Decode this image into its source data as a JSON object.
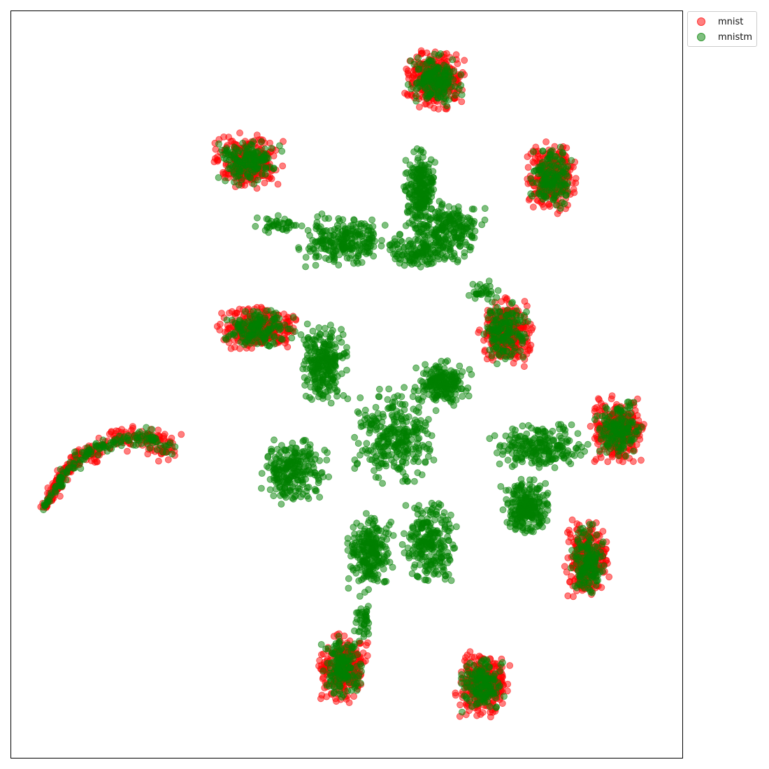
{
  "chart_data": {
    "type": "scatter",
    "title": "",
    "xlabel": "",
    "ylabel": "",
    "axis_ticks": "hidden",
    "grid": false,
    "legend_position": "outside-top-right",
    "series": [
      {
        "name": "mnist",
        "color": "#ff0000",
        "alpha": 0.5,
        "clusters": [
          {
            "cx": 622,
            "cy": 114,
            "sx": 25,
            "sy": 24,
            "n": 320
          },
          {
            "cx": 355,
            "cy": 230,
            "sx": 28,
            "sy": 22,
            "n": 300
          },
          {
            "cx": 788,
            "cy": 253,
            "sx": 20,
            "sy": 30,
            "n": 300
          },
          {
            "cx": 370,
            "cy": 470,
            "sx": 33,
            "sy": 17,
            "n": 300
          },
          {
            "cx": 723,
            "cy": 476,
            "sx": 22,
            "sy": 28,
            "n": 300
          },
          {
            "cx": 884,
            "cy": 616,
            "sx": 22,
            "sy": 28,
            "n": 300
          },
          {
            "cx": 839,
            "cy": 801,
            "sx": 18,
            "sy": 32,
            "n": 300
          },
          {
            "cx": 490,
            "cy": 955,
            "sx": 20,
            "sy": 28,
            "n": 300
          },
          {
            "cx": 691,
            "cy": 980,
            "sx": 22,
            "sy": 27,
            "n": 300
          },
          {
            "type": "arc",
            "points": [
              [
                62,
                727
              ],
              [
                78,
                703
              ],
              [
                90,
                680
              ],
              [
                108,
                660
              ],
              [
                135,
                643
              ],
              [
                165,
                630
              ],
              [
                195,
                625
              ],
              [
                222,
                630
              ],
              [
                245,
                646
              ]
            ],
            "spread": 9,
            "n": 300
          }
        ]
      },
      {
        "name": "mnistm",
        "color": "#008000",
        "alpha": 0.5,
        "clusters": [
          {
            "cx": 622,
            "cy": 114,
            "sx": 22,
            "sy": 21,
            "n": 170
          },
          {
            "cx": 355,
            "cy": 230,
            "sx": 25,
            "sy": 20,
            "n": 150
          },
          {
            "cx": 788,
            "cy": 253,
            "sx": 17,
            "sy": 27,
            "n": 150
          },
          {
            "cx": 370,
            "cy": 470,
            "sx": 29,
            "sy": 15,
            "n": 150
          },
          {
            "cx": 723,
            "cy": 476,
            "sx": 19,
            "sy": 25,
            "n": 150
          },
          {
            "cx": 884,
            "cy": 616,
            "sx": 19,
            "sy": 25,
            "n": 150
          },
          {
            "cx": 839,
            "cy": 801,
            "sx": 15,
            "sy": 29,
            "n": 150
          },
          {
            "cx": 490,
            "cy": 955,
            "sx": 17,
            "sy": 25,
            "n": 150
          },
          {
            "cx": 691,
            "cy": 980,
            "sx": 19,
            "sy": 24,
            "n": 150
          },
          {
            "type": "arc",
            "points": [
              [
                62,
                727
              ],
              [
                78,
                703
              ],
              [
                90,
                680
              ],
              [
                108,
                660
              ],
              [
                135,
                643
              ],
              [
                165,
                630
              ],
              [
                195,
                625
              ],
              [
                222,
                630
              ],
              [
                245,
                646
              ]
            ],
            "spread": 7,
            "n": 150
          },
          {
            "cx": 600,
            "cy": 270,
            "sx": 13,
            "sy": 33,
            "n": 220
          },
          {
            "cx": 640,
            "cy": 330,
            "sx": 30,
            "sy": 25,
            "n": 240
          },
          {
            "cx": 490,
            "cy": 345,
            "sx": 35,
            "sy": 22,
            "n": 240
          },
          {
            "cx": 600,
            "cy": 360,
            "sx": 28,
            "sy": 14,
            "n": 120
          },
          {
            "cx": 462,
            "cy": 520,
            "sx": 20,
            "sy": 32,
            "n": 260
          },
          {
            "cx": 632,
            "cy": 548,
            "sx": 22,
            "sy": 18,
            "n": 200
          },
          {
            "cx": 565,
            "cy": 622,
            "sx": 34,
            "sy": 40,
            "n": 300
          },
          {
            "cx": 420,
            "cy": 675,
            "sx": 28,
            "sy": 26,
            "n": 240
          },
          {
            "cx": 770,
            "cy": 640,
            "sx": 40,
            "sy": 20,
            "n": 220
          },
          {
            "cx": 752,
            "cy": 725,
            "sx": 20,
            "sy": 22,
            "n": 240
          },
          {
            "cx": 530,
            "cy": 790,
            "sx": 20,
            "sy": 32,
            "n": 240
          },
          {
            "cx": 615,
            "cy": 775,
            "sx": 22,
            "sy": 35,
            "n": 240
          },
          {
            "cx": 520,
            "cy": 880,
            "sx": 8,
            "sy": 18,
            "n": 40
          },
          {
            "cx": 400,
            "cy": 322,
            "sx": 20,
            "sy": 8,
            "n": 40
          },
          {
            "cx": 690,
            "cy": 415,
            "sx": 14,
            "sy": 10,
            "n": 30
          }
        ]
      }
    ]
  }
}
